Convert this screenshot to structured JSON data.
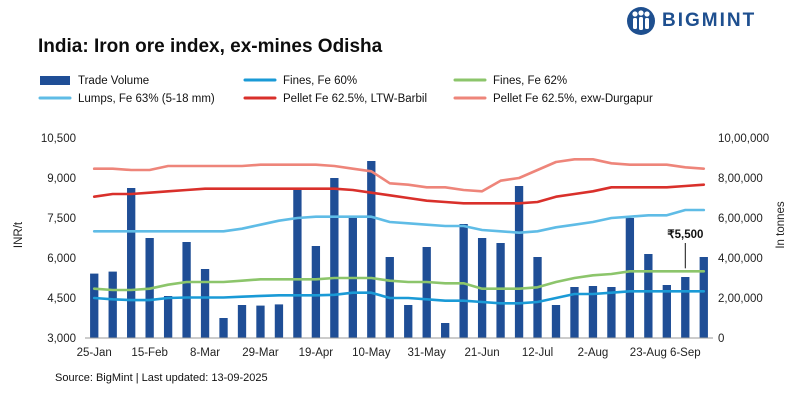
{
  "header": {
    "title": "India: Iron ore index, ex-mines Odisha",
    "logo_text": "BIGMINT"
  },
  "footer": {
    "source": "Source: BigMint | Last updated: 13-09-2025"
  },
  "colors": {
    "volume": "#1f4e96",
    "fines60": "#1a9ad6",
    "fines62": "#8cc56b",
    "lumps63": "#5fbce6",
    "pellet_ltw": "#d9302b",
    "pellet_exw": "#ee857a",
    "logo": "#1e4f8f"
  },
  "chart_data": {
    "type": "bar+line",
    "title": "India: Iron ore index, ex-mines Odisha",
    "xlabel": "",
    "ylabel": "INR/t",
    "y2label": "In tonnes",
    "ylim": [
      3000,
      10500
    ],
    "yticks": [
      3000,
      4500,
      6000,
      7500,
      9000,
      10500
    ],
    "ytick_labels": [
      "3,000",
      "4,500",
      "6,000",
      "7,500",
      "9,000",
      "10,500"
    ],
    "y2lim": [
      0,
      1000000
    ],
    "y2ticks": [
      0,
      200000,
      400000,
      600000,
      800000,
      1000000
    ],
    "y2tick_labels": [
      "0",
      "2,00,000",
      "4,00,000",
      "6,00,000",
      "8,00,000",
      "10,00,000"
    ],
    "x_tick_labels": [
      "25-Jan",
      "15-Feb",
      "8-Mar",
      "29-Mar",
      "19-Apr",
      "10-May",
      "31-May",
      "21-Jun",
      "12-Jul",
      "2-Aug",
      "23-Aug",
      "6-Sep"
    ],
    "x_tick_positions": [
      0,
      3,
      6,
      9,
      12,
      15,
      18,
      21,
      24,
      27,
      30,
      32
    ],
    "legend": [
      {
        "key": "volume",
        "label": "Trade Volume",
        "kind": "bar"
      },
      {
        "key": "fines60",
        "label": "Fines, Fe 60%",
        "kind": "line"
      },
      {
        "key": "fines62",
        "label": "Fines, Fe 62%",
        "kind": "line"
      },
      {
        "key": "lumps63",
        "label": "Lumps, Fe 63% (5-18 mm)",
        "kind": "line"
      },
      {
        "key": "pellet_ltw",
        "label": "Pellet Fe 62.5%, LTW-Barbil",
        "kind": "line"
      },
      {
        "key": "pellet_exw",
        "label": "Pellet Fe  62.5%, exw-Durgapur",
        "kind": "line"
      }
    ],
    "annotation": {
      "text": "₹5,500",
      "series": "fines62",
      "index": 32
    },
    "bar_series": {
      "name": "Trade Volume",
      "axis": "right",
      "values": [
        322000,
        332000,
        750000,
        500000,
        210000,
        480000,
        345000,
        100000,
        165000,
        162000,
        168000,
        745000,
        460000,
        800000,
        610000,
        885000,
        405000,
        165000,
        455000,
        75000,
        570000,
        500000,
        475000,
        760000,
        405000,
        165000,
        255000,
        260000,
        255000,
        600000,
        420000,
        265000,
        305000,
        405000
      ]
    },
    "x_count": 34,
    "series": [
      {
        "name": "Fines, Fe 60%",
        "key": "fines60",
        "axis": "left",
        "values": [
          4500,
          4450,
          4420,
          4420,
          4500,
          4520,
          4520,
          4520,
          4550,
          4580,
          4600,
          4600,
          4600,
          4620,
          4700,
          4700,
          4500,
          4500,
          4450,
          4400,
          4400,
          4350,
          4300,
          4300,
          4350,
          4500,
          4650,
          4650,
          4700,
          4750,
          4750,
          4750,
          4750,
          4750
        ]
      },
      {
        "name": "Fines, Fe 62%",
        "key": "fines62",
        "axis": "left",
        "values": [
          4850,
          4800,
          4800,
          4850,
          5000,
          5100,
          5100,
          5100,
          5150,
          5200,
          5200,
          5200,
          5200,
          5250,
          5250,
          5250,
          5150,
          5100,
          5100,
          5050,
          5050,
          4850,
          4850,
          4850,
          4900,
          5100,
          5250,
          5350,
          5400,
          5500,
          5500,
          5500,
          5500,
          5500
        ]
      },
      {
        "name": "Lumps, Fe 63% (5-18 mm)",
        "key": "lumps63",
        "axis": "left",
        "values": [
          7000,
          7000,
          7000,
          7000,
          7000,
          7000,
          7000,
          7000,
          7100,
          7250,
          7400,
          7500,
          7550,
          7550,
          7550,
          7550,
          7350,
          7300,
          7250,
          7200,
          7200,
          7050,
          7000,
          6950,
          7000,
          7150,
          7250,
          7350,
          7500,
          7550,
          7600,
          7600,
          7800,
          7800
        ]
      },
      {
        "name": "Pellet Fe 62.5%, LTW-Barbil",
        "key": "pellet_ltw",
        "axis": "left",
        "values": [
          8300,
          8400,
          8400,
          8450,
          8500,
          8550,
          8600,
          8600,
          8600,
          8600,
          8600,
          8600,
          8600,
          8600,
          8550,
          8450,
          8350,
          8250,
          8150,
          8100,
          8050,
          8050,
          8050,
          8050,
          8100,
          8300,
          8400,
          8500,
          8650,
          8650,
          8650,
          8650,
          8700,
          8750
        ]
      },
      {
        "name": "Pellet Fe  62.5%, exw-Durgapur",
        "key": "pellet_exw",
        "axis": "left",
        "values": [
          9350,
          9350,
          9300,
          9300,
          9450,
          9450,
          9450,
          9450,
          9450,
          9500,
          9500,
          9500,
          9500,
          9450,
          9350,
          9250,
          8800,
          8750,
          8650,
          8650,
          8550,
          8500,
          8900,
          9000,
          9300,
          9600,
          9700,
          9700,
          9550,
          9500,
          9500,
          9500,
          9400,
          9350
        ]
      }
    ]
  }
}
